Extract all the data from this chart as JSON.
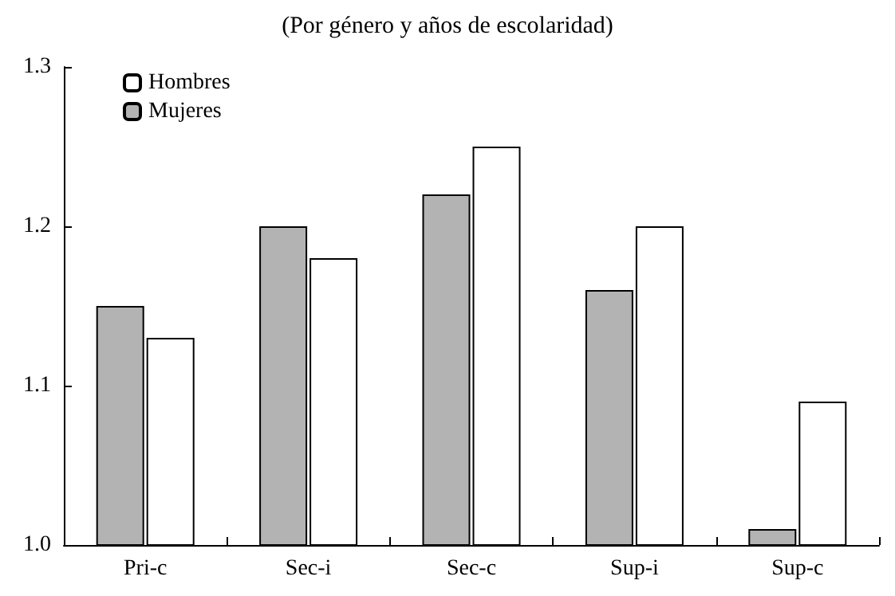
{
  "chart_data": {
    "type": "bar",
    "title": "(Por género y años de escolaridad)",
    "categories": [
      "Pri-c",
      "Sec-i",
      "Sec-c",
      "Sup-i",
      "Sup-c"
    ],
    "series": [
      {
        "name": "Mujeres",
        "color": "#b3b3b3",
        "values": [
          1.15,
          1.2,
          1.22,
          1.16,
          1.01
        ]
      },
      {
        "name": "Hombres",
        "color": "#ffffff",
        "values": [
          1.13,
          1.18,
          1.25,
          1.2,
          1.09
        ]
      }
    ],
    "ylim": [
      1.0,
      1.3
    ],
    "yticks": [
      {
        "value": 1.0,
        "label": "1.0"
      },
      {
        "value": 1.1,
        "label": "1.1"
      },
      {
        "value": 1.2,
        "label": "1.2"
      },
      {
        "value": 1.3,
        "label": "1.3"
      }
    ],
    "grid": false,
    "legend": "top left"
  }
}
